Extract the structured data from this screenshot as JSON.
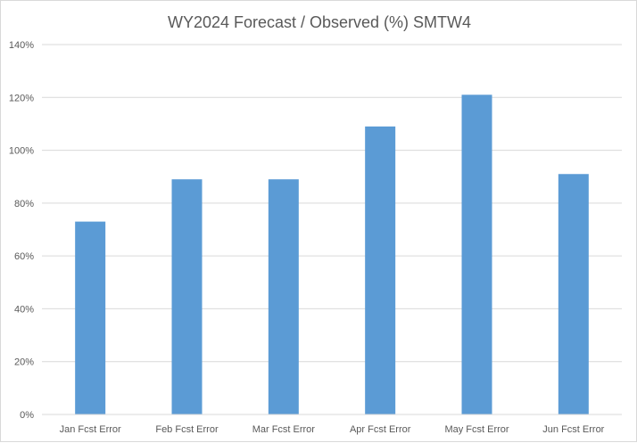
{
  "chart_data": {
    "type": "bar",
    "title": "WY2024 Forecast / Observed (%) SMTW4",
    "xlabel": "",
    "ylabel": "",
    "categories": [
      "Jan Fcst Error",
      "Feb Fcst Error",
      "Mar Fcst Error",
      "Apr Fcst Error",
      "May Fcst Error",
      "Jun Fcst Error"
    ],
    "values": [
      73,
      89,
      89,
      109,
      121,
      91
    ],
    "ylim": [
      0,
      140
    ],
    "yticks": [
      0,
      20,
      40,
      60,
      80,
      100,
      120,
      140
    ],
    "ytick_labels": [
      "0%",
      "20%",
      "40%",
      "60%",
      "80%",
      "100%",
      "120%",
      "140%"
    ],
    "grid": true,
    "legend": "none",
    "bar_color": "#5b9bd5"
  }
}
